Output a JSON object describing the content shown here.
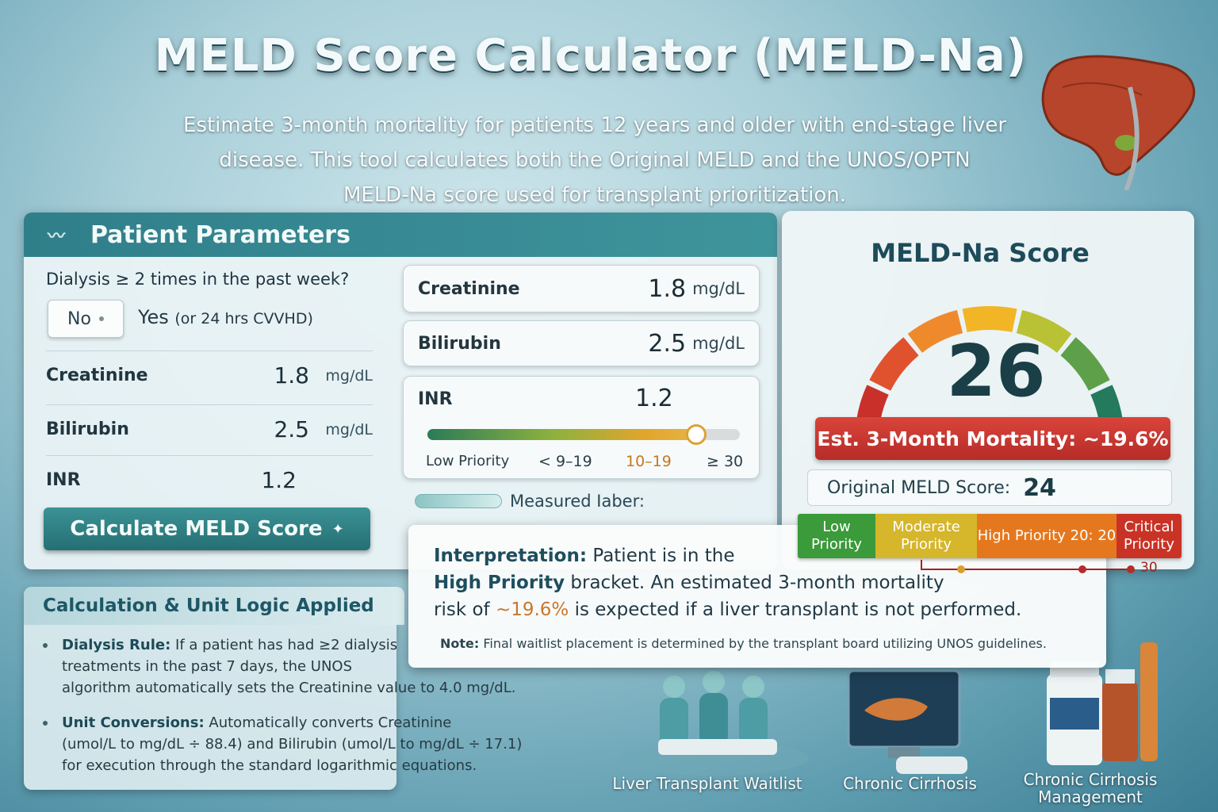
{
  "header": {
    "title": "MELD Score Calculator (MELD-Na)",
    "subtitle_1": "Estimate 3-month mortality for patients 12 years and older with end-stage liver",
    "subtitle_2": "disease. This tool calculates both the Original MELD and the UNOS/OPTN",
    "subtitle_3": "MELD-Na score used for transplant prioritization."
  },
  "params": {
    "header": "Patient Parameters",
    "dialysis_question": "Dialysis ≥ 2 times in the past week?",
    "no_label": "No",
    "yes_label": "Yes",
    "yes_note": "(or 24 hrs CVVHD)",
    "rows": [
      {
        "label": "Creatinine",
        "value": "1.8",
        "unit": "mg/dL"
      },
      {
        "label": "Bilirubin",
        "value": "2.5",
        "unit": "mg/dL"
      },
      {
        "label": "INR",
        "value": "1.2",
        "unit": ""
      }
    ],
    "calc_button": "Calculate MELD Score",
    "right_cards": [
      {
        "label": "Creatinine",
        "value": "1.8",
        "unit": "mg/dL"
      },
      {
        "label": "Bilirubin",
        "value": "2.5",
        "unit": "mg/dL"
      }
    ],
    "inr_card": {
      "label": "INR",
      "value": "1.2",
      "slider_fill": 0.86,
      "tick_low": "Low Priority",
      "tick_1": "< 9–19",
      "tick_2": "10–19",
      "tick_3": "≥ 30"
    },
    "measured_label": "Measured Iaber:"
  },
  "score": {
    "title": "MELD-Na Score",
    "value": "26",
    "mortality": "Est. 3-Month Mortality: ~19.6%",
    "original_label": "Original MELD Score:",
    "original_value": "24",
    "gauge_colors": [
      "#c9302a",
      "#e0522e",
      "#ef8a2c",
      "#f2b526",
      "#b8c234",
      "#5ea04a",
      "#237a5c"
    ],
    "legend": [
      {
        "label": "Low Priority",
        "color": "#3b9a3a"
      },
      {
        "label": "Moderate Priority",
        "color": "#d6b62a"
      },
      {
        "label": "High Priority 20: 20",
        "color": "#e5781e"
      },
      {
        "label": "Critical Priority",
        "color": "#c93326"
      }
    ],
    "legend_end": "30"
  },
  "interpretation": {
    "lead": "Interpretation:",
    "line1_rest": "Patient is in the",
    "bracket": "High Priority",
    "line2_rest": "bracket. An estimated 3-month mortality",
    "line3_pre": "risk of",
    "risk": "~19.6%",
    "line3_post": "is expected if a liver transplant is not performed.",
    "note_lead": "Note:",
    "note_text": "Final waitlist placement is determined by the transplant board utilizing UNOS guidelines."
  },
  "logic": {
    "header": "Calculation & Unit Logic Applied",
    "bullets": [
      {
        "lead": "Dialysis Rule:",
        "l1": "If a patient has had ≥2 dialysis",
        "l2": "treatments in the past 7 days, the UNOS",
        "l3": "algorithm automatically sets the Creatinine value to 4.0 mg/dL."
      },
      {
        "lead": "Unit Conversions:",
        "l1": "Automatically converts Creatinine",
        "l2": "(umol/L to mg/dL ÷ 88.4) and Bilirubin (umol/L to mg/dL ÷ 17.1)",
        "l3": "for execution through the standard logarithmic equations."
      }
    ]
  },
  "illustrations": {
    "cap1": "Liver Transplant Waitlist",
    "cap2": "Chronic Cirrhosis",
    "cap3_1": "Chronic Cirrhosis",
    "cap3_2": "Management"
  }
}
